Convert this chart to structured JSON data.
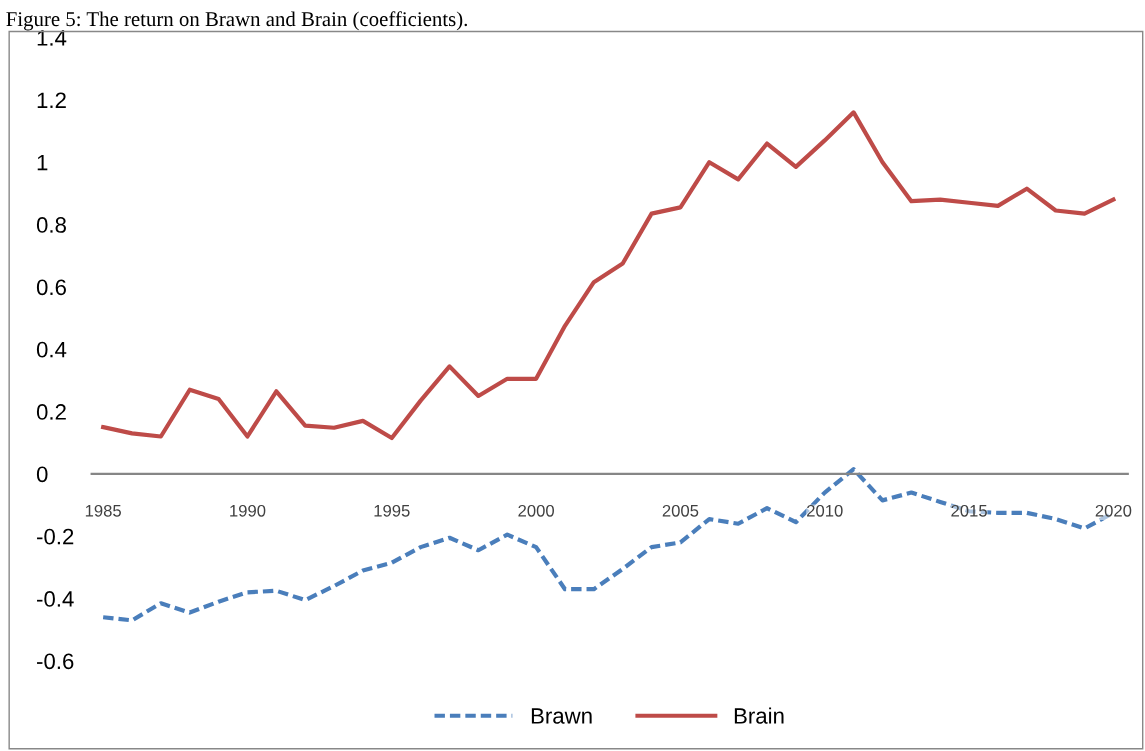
{
  "chart_data": {
    "type": "line",
    "title": "Figure 5: The return on Brawn and Brain (coefficients).",
    "x": [
      1985,
      1986,
      1987,
      1988,
      1989,
      1990,
      1991,
      1992,
      1993,
      1994,
      1995,
      1996,
      1997,
      1998,
      1999,
      2000,
      2001,
      2002,
      2003,
      2004,
      2005,
      2006,
      2007,
      2008,
      2009,
      2010,
      2011,
      2012,
      2013,
      2014,
      2015,
      2016,
      2017,
      2018,
      2019,
      2020
    ],
    "series": [
      {
        "name": "Brawn",
        "color": "#4a7ebb",
        "line_style": "dashed",
        "values": [
          -0.46,
          -0.47,
          -0.415,
          -0.445,
          -0.41,
          -0.38,
          -0.375,
          -0.405,
          -0.36,
          -0.31,
          -0.285,
          -0.235,
          -0.205,
          -0.245,
          -0.195,
          -0.235,
          -0.37,
          -0.37,
          -0.305,
          -0.235,
          -0.22,
          -0.145,
          -0.16,
          -0.11,
          -0.155,
          -0.06,
          0.015,
          -0.085,
          -0.06,
          -0.09,
          -0.12,
          -0.125,
          -0.125,
          -0.145,
          -0.175,
          -0.125
        ]
      },
      {
        "name": "Brain",
        "color": "#be4b48",
        "line_style": "solid",
        "values": [
          0.15,
          0.13,
          0.12,
          0.27,
          0.24,
          0.12,
          0.265,
          0.155,
          0.148,
          0.17,
          0.115,
          0.235,
          0.345,
          0.25,
          0.305,
          0.305,
          0.475,
          0.615,
          0.675,
          0.835,
          0.855,
          1.0,
          0.945,
          1.06,
          0.985,
          1.07,
          1.16,
          1.0,
          0.875,
          0.88,
          0.87,
          0.86,
          0.915,
          0.845,
          0.835,
          0.88
        ]
      }
    ],
    "xlim": [
      1984.6,
      2020.5
    ],
    "xticks": [
      1985,
      1990,
      1995,
      2000,
      2005,
      2010,
      2015,
      2020
    ],
    "ylim": [
      -0.6,
      1.4
    ],
    "yticks": [
      -0.6,
      -0.4,
      -0.2,
      0,
      0.2,
      0.4,
      0.6,
      0.8,
      1,
      1.2,
      1.4
    ],
    "grid": false,
    "legend": "bottom",
    "marker": "none"
  }
}
